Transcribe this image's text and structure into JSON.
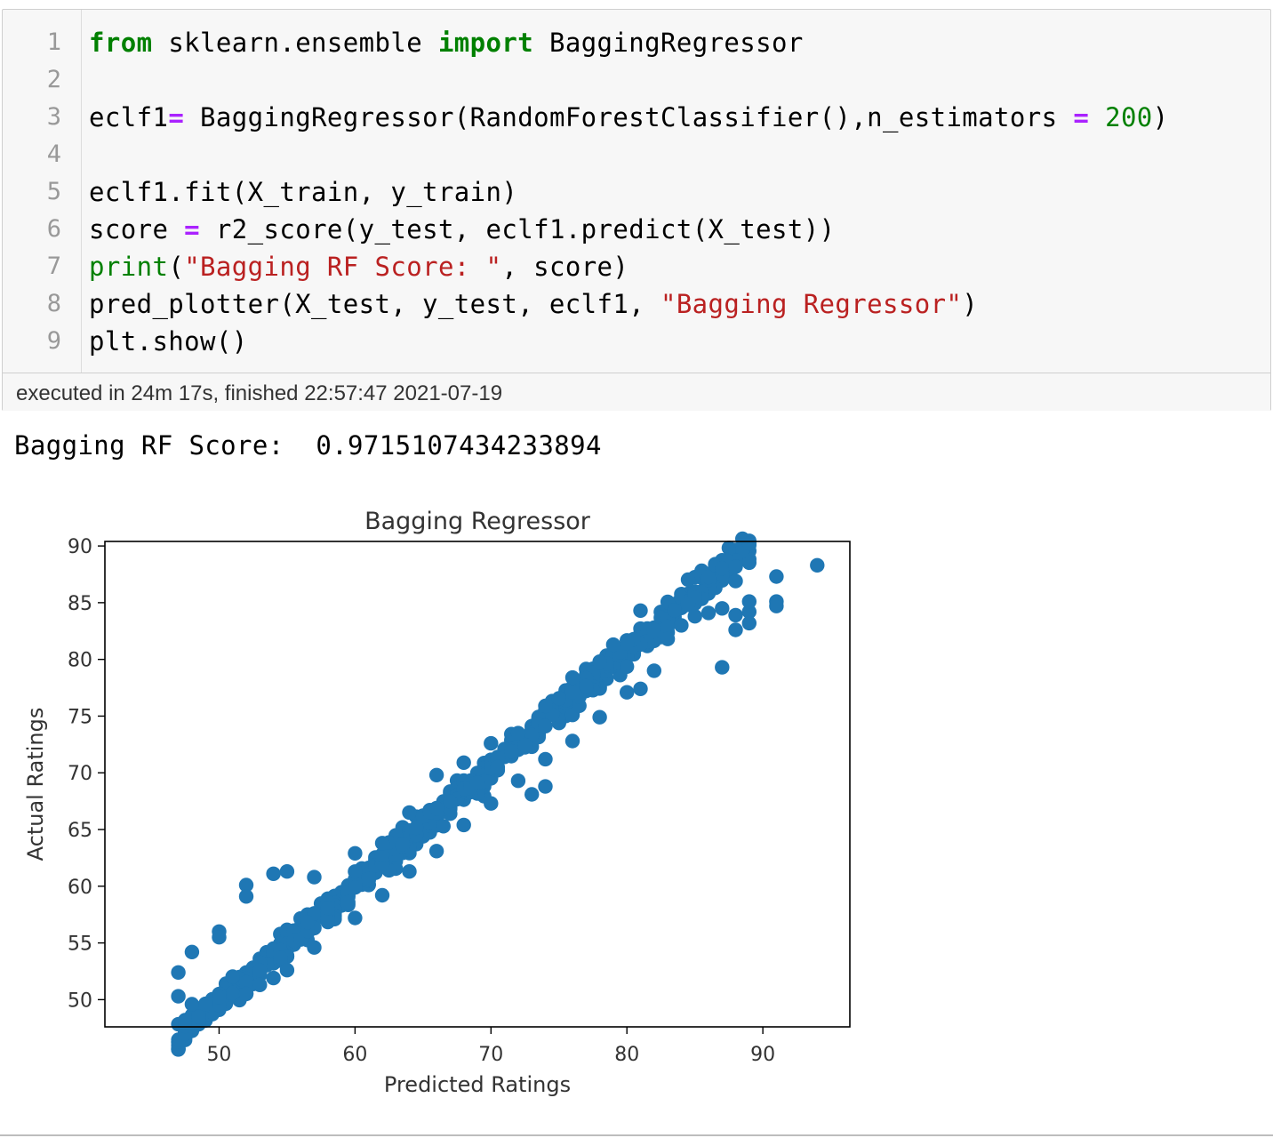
{
  "cell": {
    "lines": [
      {
        "n": "1",
        "tokens": [
          {
            "t": "from",
            "c": "kw"
          },
          {
            "t": " sklearn.ensemble ",
            "c": ""
          },
          {
            "t": "import",
            "c": "kw"
          },
          {
            "t": " BaggingRegressor",
            "c": ""
          }
        ]
      },
      {
        "n": "2",
        "tokens": []
      },
      {
        "n": "3",
        "tokens": [
          {
            "t": "eclf1",
            "c": ""
          },
          {
            "t": "=",
            "c": "op"
          },
          {
            "t": " BaggingRegressor(RandomForestClassifier(),n_estimators ",
            "c": ""
          },
          {
            "t": "=",
            "c": "op"
          },
          {
            "t": " ",
            "c": ""
          },
          {
            "t": "200",
            "c": "num"
          },
          {
            "t": ")",
            "c": ""
          }
        ]
      },
      {
        "n": "4",
        "tokens": []
      },
      {
        "n": "5",
        "tokens": [
          {
            "t": "eclf1.fit(X_train, y_train)",
            "c": ""
          }
        ]
      },
      {
        "n": "6",
        "tokens": [
          {
            "t": "score ",
            "c": ""
          },
          {
            "t": "=",
            "c": "op"
          },
          {
            "t": " r2_score(y_test, eclf1.predict(X_test))",
            "c": ""
          }
        ]
      },
      {
        "n": "7",
        "tokens": [
          {
            "t": "print",
            "c": "bi"
          },
          {
            "t": "(",
            "c": ""
          },
          {
            "t": "\"Bagging RF Score: \"",
            "c": "str"
          },
          {
            "t": ", score)",
            "c": ""
          }
        ]
      },
      {
        "n": "8",
        "tokens": [
          {
            "t": "pred_plotter(X_test, y_test, eclf1, ",
            "c": ""
          },
          {
            "t": "\"Bagging Regressor\"",
            "c": "str"
          },
          {
            "t": ")",
            "c": ""
          }
        ]
      },
      {
        "n": "9",
        "tokens": [
          {
            "t": "plt.show()",
            "c": ""
          }
        ]
      }
    ],
    "exec_info": "executed in 24m 17s, finished 22:57:47 2021-07-19"
  },
  "output": {
    "stdout": "Bagging RF Score:  0.9715107434233894"
  },
  "colors": {
    "point": "#1f77b4",
    "axis": "#000000",
    "tick_text": "#333333"
  },
  "chart_data": {
    "type": "scatter",
    "title": "Bagging Regressor",
    "xlabel": "Predicted Ratings",
    "ylabel": "Actual Ratings",
    "xlim": [
      41.6,
      96.4
    ],
    "ylim": [
      47.6,
      90.4
    ],
    "xticks": [
      50,
      60,
      70,
      80,
      90
    ],
    "yticks": [
      50,
      55,
      60,
      65,
      70,
      75,
      80,
      85,
      90
    ],
    "grid": false,
    "legend": "none",
    "fit": {
      "slope": 1.03,
      "intercept": -1.7,
      "scatter_sd": 0.9
    },
    "points": [
      [
        47,
        52.4
      ],
      [
        48,
        54.2
      ],
      [
        50,
        56.0
      ],
      [
        50,
        55.5
      ],
      [
        52,
        60.1
      ],
      [
        52,
        59.1
      ],
      [
        54,
        61.1
      ],
      [
        55,
        61.3
      ],
      [
        47,
        50.3
      ],
      [
        48,
        49.6
      ],
      [
        49,
        49.6
      ],
      [
        50,
        50.2
      ],
      [
        52,
        50.5
      ],
      [
        53,
        51.3
      ],
      [
        54,
        51.9
      ],
      [
        55,
        52.6
      ],
      [
        73,
        68.1
      ],
      [
        74,
        68.8
      ],
      [
        76,
        78.4
      ],
      [
        79,
        81.3
      ],
      [
        81,
        84.3
      ],
      [
        82,
        82.6
      ],
      [
        83,
        81.8
      ],
      [
        84,
        83.0
      ],
      [
        82,
        79.0
      ],
      [
        81,
        77.4
      ],
      [
        85,
        83.8
      ],
      [
        86,
        84.1
      ],
      [
        87,
        84.5
      ],
      [
        88,
        83.9
      ],
      [
        89,
        84.2
      ],
      [
        87,
        79.3
      ],
      [
        88,
        86.9
      ],
      [
        89,
        85.1
      ],
      [
        91,
        87.3
      ],
      [
        91,
        85.1
      ],
      [
        91,
        84.7
      ],
      [
        94,
        88.3
      ],
      [
        88,
        82.6
      ],
      [
        89,
        83.2
      ],
      [
        60,
        57.2
      ],
      [
        60,
        62.9
      ],
      [
        62,
        59.2
      ],
      [
        62,
        63.8
      ],
      [
        64,
        61.3
      ],
      [
        64,
        66.5
      ],
      [
        66,
        63.1
      ],
      [
        66,
        69.8
      ],
      [
        68,
        65.4
      ],
      [
        68,
        70.9
      ],
      [
        70,
        67.3
      ],
      [
        70,
        72.6
      ],
      [
        72,
        69.3
      ],
      [
        72,
        73.5
      ],
      [
        74,
        71.2
      ],
      [
        74,
        75.9
      ],
      [
        76,
        72.8
      ],
      [
        76,
        77.1
      ],
      [
        78,
        74.9
      ],
      [
        78,
        79.8
      ],
      [
        80,
        77.1
      ],
      [
        80,
        81.4
      ],
      [
        57,
        54.6
      ],
      [
        57,
        60.8
      ]
    ],
    "n_fill_points": 720
  }
}
